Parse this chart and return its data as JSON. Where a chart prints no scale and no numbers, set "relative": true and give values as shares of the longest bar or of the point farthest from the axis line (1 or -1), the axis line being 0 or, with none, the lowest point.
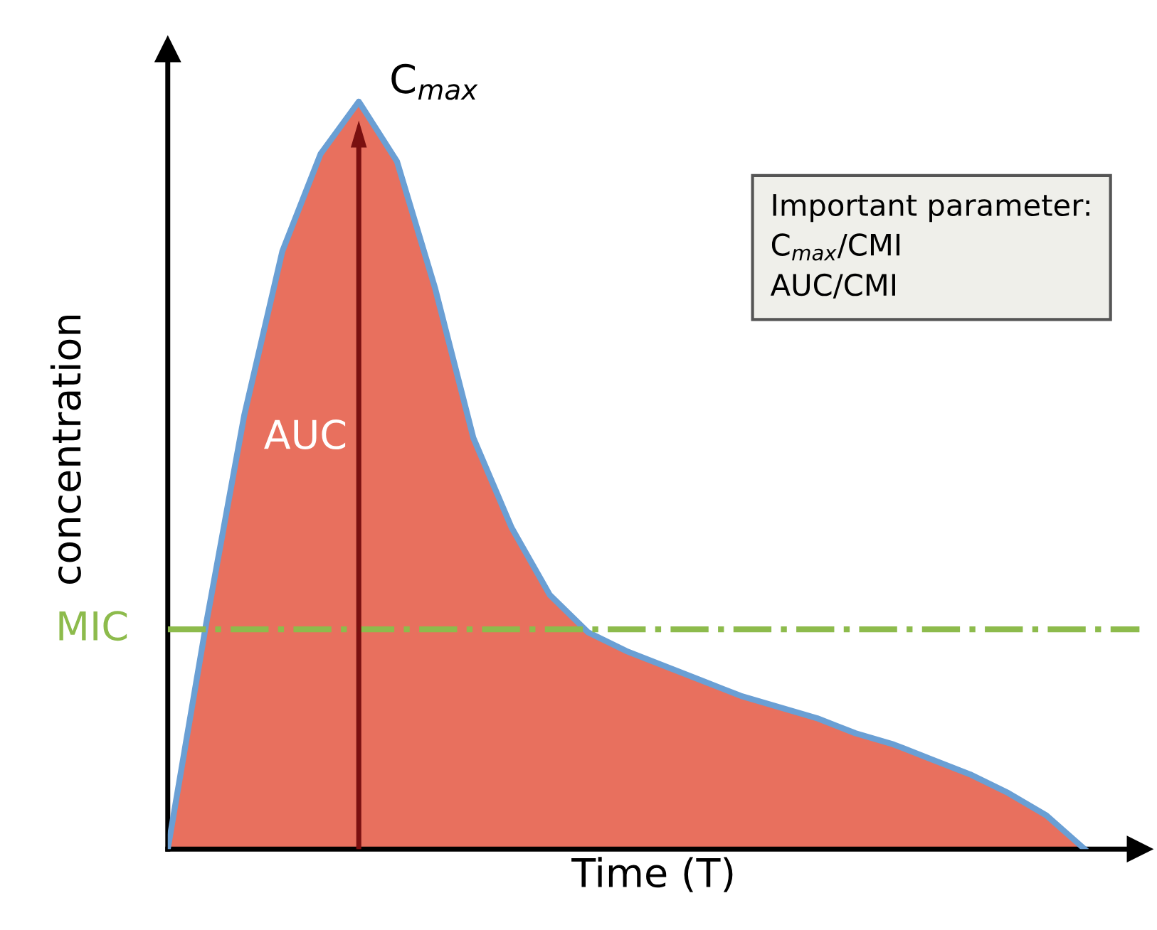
{
  "chart_data": {
    "type": "area",
    "relative": true,
    "xlabel": "Time (T)",
    "ylabel": "concentration",
    "categories": [
      null,
      null,
      null,
      null,
      null,
      null,
      null,
      null,
      null,
      null,
      null,
      null,
      null,
      null,
      null,
      null,
      null,
      null,
      null,
      null,
      null,
      null,
      null,
      null,
      null
    ],
    "series": [
      {
        "color": "#e8705e",
        "values": [
          0,
          0.3,
          0.58,
          0.8,
          0.93,
          1,
          0.92,
          0.75,
          0.55,
          0.43,
          0.34,
          0.29,
          0.265,
          0.245,
          0.225,
          0.205,
          0.19,
          0.175,
          0.155,
          0.14,
          0.12,
          0.1,
          0.075,
          0.045,
          0
        ]
      }
    ],
    "ref_lines": [
      {
        "axis": "y",
        "value": 0.294,
        "label": "MIC",
        "color": "#8dbb4c",
        "line_style": "dashdot"
      }
    ],
    "annotations": [
      "C$_{max}$",
      "AUC",
      "Important parameter:\nC$_{max}$/CMI\nAUC/CMI"
    ]
  }
}
